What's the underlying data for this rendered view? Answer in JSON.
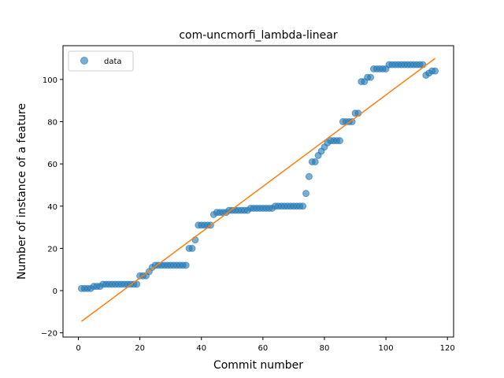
{
  "chart_data": {
    "type": "scatter",
    "title": "com-uncmorfi_lambda-linear",
    "xlabel": "Commit number",
    "ylabel": "Number of instance of a feature",
    "xlim": [
      -5,
      122
    ],
    "ylim": [
      -22,
      116
    ],
    "xticks": [
      0,
      20,
      40,
      60,
      80,
      100,
      120
    ],
    "yticks": [
      -20,
      0,
      20,
      40,
      60,
      80,
      100
    ],
    "legend_position": "upper-left",
    "colors": {
      "points": "#1f77b4",
      "fit_line": "#ff7f0e",
      "axes": "#000000",
      "background": "#ffffff"
    },
    "series": [
      {
        "name": "data",
        "style": "points",
        "x": [
          1,
          2,
          3,
          4,
          5,
          6,
          7,
          8,
          9,
          10,
          11,
          12,
          13,
          14,
          15,
          16,
          17,
          18,
          19,
          20,
          21,
          22,
          23,
          24,
          25,
          26,
          27,
          28,
          29,
          30,
          31,
          32,
          33,
          34,
          35,
          36,
          37,
          38,
          39,
          40,
          41,
          42,
          43,
          44,
          45,
          46,
          47,
          48,
          49,
          50,
          51,
          52,
          53,
          54,
          55,
          56,
          57,
          58,
          59,
          60,
          61,
          62,
          63,
          64,
          65,
          66,
          67,
          68,
          69,
          70,
          71,
          72,
          73,
          74,
          75,
          76,
          77,
          78,
          79,
          80,
          81,
          82,
          83,
          84,
          85,
          86,
          87,
          88,
          89,
          90,
          91,
          92,
          93,
          94,
          95,
          96,
          97,
          98,
          99,
          100,
          101,
          102,
          103,
          104,
          105,
          106,
          107,
          108,
          109,
          110,
          111,
          112,
          113,
          114,
          115,
          116
        ],
        "y": [
          1,
          1,
          1,
          1,
          2,
          2,
          2,
          3,
          3,
          3,
          3,
          3,
          3,
          3,
          3,
          3,
          3,
          3,
          3,
          7,
          7,
          7,
          9,
          11,
          12,
          12,
          12,
          12,
          12,
          12,
          12,
          12,
          12,
          12,
          12,
          20,
          20,
          24,
          31,
          31,
          31,
          31,
          31,
          36,
          37,
          37,
          37,
          37,
          38,
          38,
          38,
          38,
          38,
          38,
          38,
          39,
          39,
          39,
          39,
          39,
          39,
          39,
          39,
          40,
          40,
          40,
          40,
          40,
          40,
          40,
          40,
          40,
          40,
          46,
          54,
          61,
          61,
          64,
          66,
          68,
          70,
          71,
          71,
          71,
          71,
          80,
          80,
          80,
          80,
          84,
          84,
          99,
          99,
          101,
          101,
          105,
          105,
          105,
          105,
          105,
          107,
          107,
          107,
          107,
          107,
          107,
          107,
          107,
          107,
          107,
          107,
          107,
          102,
          103,
          104,
          104
        ]
      },
      {
        "style": "line",
        "x": [
          1,
          116
        ],
        "y": [
          -14.6,
          110
        ]
      }
    ]
  }
}
